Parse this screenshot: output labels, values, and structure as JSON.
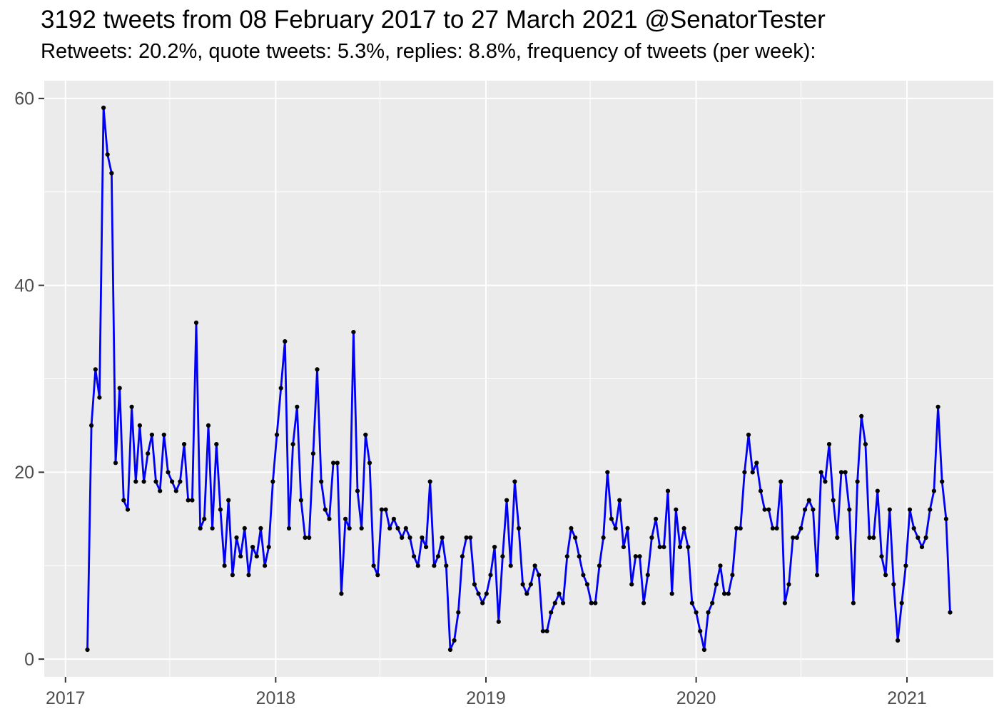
{
  "chart_data": {
    "type": "line",
    "title": "3192 tweets from 08 February 2017 to 27 March 2021 @SenatorTester",
    "subtitle": "Retweets: 20.2%, quote tweets: 5.3%, replies: 8.8%, frequency of tweets (per week):",
    "total_tweets": "3192",
    "retweets_pct": "20.2%",
    "quote_tweets_pct": "5.3%",
    "replies_pct": "8.8%",
    "x": {
      "unit": "weeks since 08 February 2017",
      "start_label": "08 February 2017",
      "end_label": "27 March 2021",
      "tick_labels": [
        "2017",
        "2018",
        "2019",
        "2020",
        "2021"
      ],
      "tick_weeks": [
        -5.43,
        46.71,
        98.86,
        151.0,
        203.29
      ],
      "minor_tick_weeks": [
        20.43,
        72.57,
        124.71,
        177.0
      ],
      "domain_weeks": [
        -10.7,
        224.7
      ]
    },
    "y": {
      "tick_labels": [
        "0",
        "20",
        "40",
        "60"
      ],
      "ticks": [
        0,
        20,
        40,
        60
      ],
      "minor_ticks": [
        10,
        30,
        50
      ],
      "domain": [
        -1.9,
        61.9
      ]
    },
    "legend": "none",
    "grid": "on",
    "values": [
      1,
      25,
      31,
      28,
      59,
      54,
      52,
      21,
      29,
      17,
      16,
      27,
      19,
      25,
      19,
      22,
      24,
      19,
      18,
      24,
      20,
      19,
      18,
      19,
      23,
      17,
      17,
      36,
      14,
      15,
      25,
      14,
      23,
      16,
      10,
      17,
      9,
      13,
      11,
      14,
      9,
      12,
      11,
      14,
      10,
      12,
      19,
      24,
      29,
      34,
      14,
      23,
      27,
      17,
      13,
      13,
      22,
      31,
      19,
      16,
      15,
      21,
      21,
      7,
      15,
      14,
      35,
      18,
      14,
      24,
      21,
      10,
      9,
      16,
      16,
      14,
      15,
      14,
      13,
      14,
      13,
      11,
      10,
      13,
      12,
      19,
      10,
      11,
      13,
      10,
      1,
      2,
      5,
      11,
      13,
      13,
      8,
      7,
      6,
      7,
      9,
      12,
      4,
      11,
      17,
      10,
      19,
      14,
      8,
      7,
      8,
      10,
      9,
      3,
      3,
      5,
      6,
      7,
      6,
      11,
      14,
      13,
      11,
      9,
      8,
      6,
      6,
      10,
      13,
      20,
      15,
      14,
      17,
      12,
      14,
      8,
      11,
      11,
      6,
      9,
      13,
      15,
      12,
      12,
      18,
      7,
      16,
      12,
      14,
      12,
      6,
      5,
      3,
      1,
      5,
      6,
      8,
      10,
      7,
      7,
      9,
      14,
      14,
      20,
      24,
      20,
      21,
      18,
      16,
      16,
      14,
      14,
      19,
      6,
      8,
      13,
      13,
      14,
      16,
      17,
      16,
      9,
      20,
      19,
      23,
      17,
      13,
      20,
      20,
      16,
      6,
      19,
      26,
      23,
      13,
      13,
      18,
      11,
      9,
      16,
      8,
      2,
      6,
      10,
      16,
      14,
      13,
      12,
      13,
      16,
      18,
      27,
      19,
      15,
      5
    ],
    "style": {
      "line_color": "#0000F5",
      "point_color": "#000000",
      "panel_bg": "#EBEBEB",
      "grid_color": "#FFFFFF",
      "axis_text_color": "#4D4D4D",
      "tick_mark_color": "#333333",
      "title_color": "#000000",
      "figure_bg": "#FFFFFF"
    }
  }
}
